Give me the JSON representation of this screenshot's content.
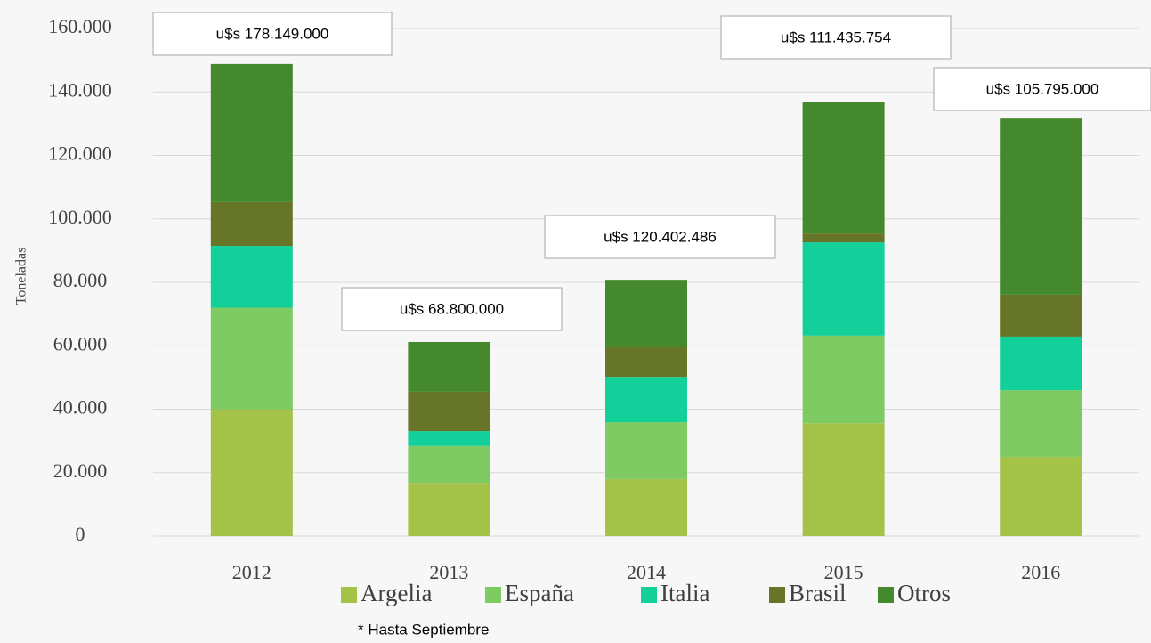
{
  "chart_data": {
    "type": "stacked_bar",
    "y_axis_label": "Toneladas",
    "categories": [
      "2012",
      "2013",
      "2014",
      "2015",
      "2016"
    ],
    "series": [
      {
        "name": "Argelia",
        "color": "#a5c249",
        "values": [
          40000,
          16800,
          18000,
          35600,
          25000
        ]
      },
      {
        "name": "España",
        "color": "#7ecb63",
        "values": [
          32000,
          11600,
          17900,
          27600,
          21000
        ]
      },
      {
        "name": "Italia",
        "color": "#13d09b",
        "values": [
          19500,
          4700,
          14300,
          29400,
          16900
        ]
      },
      {
        "name": "Brasil",
        "color": "#667527",
        "values": [
          13800,
          12400,
          9300,
          2800,
          13200
        ]
      },
      {
        "name": "Otros",
        "color": "#44892e",
        "values": [
          43500,
          15700,
          21300,
          41300,
          55500
        ]
      }
    ],
    "annotations": [
      "u$s 178.149.000",
      "u$s 68.800.000",
      "u$s 120.402.486",
      "u$s 111.435.754",
      "u$s 105.795.000"
    ],
    "note": "* Hasta Septiembre",
    "ylim": [
      0,
      160000
    ],
    "yticks": [
      0,
      {
        "value": 20000,
        "label": "20.000"
      },
      {
        "value": 40000,
        "label": "40.000"
      },
      {
        "value": 60000,
        "label": "60.000"
      },
      {
        "value": 80000,
        "label": "80.000"
      },
      {
        "value": 100000,
        "label": "100.000"
      },
      {
        "value": 120000,
        "label": "120.000"
      },
      {
        "value": 140000,
        "label": "140.000"
      },
      {
        "value": 160000,
        "label": "160.000"
      }
    ],
    "grid": true,
    "legend": "bottom"
  }
}
